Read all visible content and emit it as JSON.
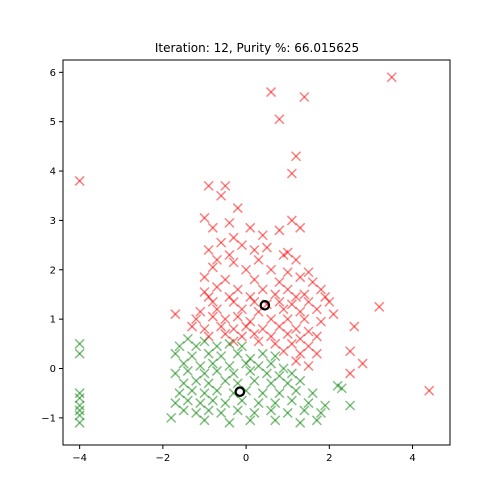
{
  "chart_data": {
    "type": "scatter",
    "title": "Iteration: 12, Purity %: 66.015625",
    "xlabel": "",
    "ylabel": "",
    "xlim": [
      -4.4,
      4.9
    ],
    "ylim": [
      -1.55,
      6.25
    ],
    "xticks": [
      -4,
      -2,
      0,
      2,
      4
    ],
    "yticks": [
      -1,
      0,
      1,
      2,
      3,
      4,
      5,
      6
    ],
    "xtick_labels": [
      "−4",
      "−2",
      "0",
      "2",
      "4"
    ],
    "ytick_labels": [
      "−1",
      "0",
      "1",
      "2",
      "3",
      "4",
      "5",
      "6"
    ],
    "grid": false,
    "legend": "none",
    "colors": {
      "red_cluster": "#ff0000",
      "green_cluster": "#008000",
      "centroid_edge": "#000000"
    },
    "series": [
      {
        "marker": "x",
        "color": "#ff0000",
        "points": [
          [
            3.5,
            5.9
          ],
          [
            0.6,
            5.6
          ],
          [
            1.4,
            5.5
          ],
          [
            0.8,
            5.05
          ],
          [
            -4.0,
            3.8
          ],
          [
            1.2,
            4.3
          ],
          [
            1.1,
            3.95
          ],
          [
            -0.9,
            3.7
          ],
          [
            -0.5,
            3.7
          ],
          [
            -0.6,
            3.5
          ],
          [
            -1.0,
            3.05
          ],
          [
            -0.2,
            3.25
          ],
          [
            1.1,
            3.0
          ],
          [
            1.3,
            2.85
          ],
          [
            -0.4,
            2.95
          ],
          [
            -0.8,
            2.85
          ],
          [
            0.1,
            2.85
          ],
          [
            0.4,
            2.7
          ],
          [
            0.8,
            2.8
          ],
          [
            -0.3,
            2.65
          ],
          [
            -0.6,
            2.55
          ],
          [
            -0.1,
            2.5
          ],
          [
            0.5,
            2.45
          ],
          [
            -0.9,
            2.4
          ],
          [
            0.2,
            2.4
          ],
          [
            1.0,
            2.35
          ],
          [
            -0.4,
            2.3
          ],
          [
            0.9,
            2.3
          ],
          [
            -0.7,
            2.2
          ],
          [
            -0.3,
            2.15
          ],
          [
            0.3,
            2.2
          ],
          [
            1.2,
            2.2
          ],
          [
            -0.8,
            2.05
          ],
          [
            0.0,
            2.0
          ],
          [
            0.6,
            2.0
          ],
          [
            1.0,
            1.95
          ],
          [
            1.5,
            1.95
          ],
          [
            -1.0,
            1.85
          ],
          [
            -0.5,
            1.8
          ],
          [
            0.2,
            1.8
          ],
          [
            0.8,
            1.75
          ],
          [
            1.3,
            1.85
          ],
          [
            1.6,
            1.75
          ],
          [
            -0.7,
            1.65
          ],
          [
            -0.2,
            1.6
          ],
          [
            0.4,
            1.6
          ],
          [
            1.0,
            1.6
          ],
          [
            1.4,
            1.5
          ],
          [
            1.8,
            1.6
          ],
          [
            -1.0,
            1.55
          ],
          [
            -0.9,
            1.45
          ],
          [
            -0.4,
            1.45
          ],
          [
            0.1,
            1.45
          ],
          [
            0.7,
            1.5
          ],
          [
            1.2,
            1.45
          ],
          [
            1.9,
            1.45
          ],
          [
            -0.8,
            1.35
          ],
          [
            -0.3,
            1.35
          ],
          [
            0.2,
            1.35
          ],
          [
            0.5,
            1.3
          ],
          [
            0.8,
            1.35
          ],
          [
            1.1,
            1.3
          ],
          [
            1.5,
            1.35
          ],
          [
            2.0,
            1.35
          ],
          [
            3.2,
            1.25
          ],
          [
            -1.7,
            1.1
          ],
          [
            -1.1,
            1.15
          ],
          [
            -0.7,
            1.2
          ],
          [
            -0.1,
            1.2
          ],
          [
            0.3,
            1.15
          ],
          [
            0.9,
            1.2
          ],
          [
            1.3,
            1.15
          ],
          [
            1.7,
            1.2
          ],
          [
            2.1,
            1.1
          ],
          [
            -1.2,
            1.0
          ],
          [
            -0.8,
            1.05
          ],
          [
            -0.5,
            1.0
          ],
          [
            -0.2,
            1.05
          ],
          [
            0.1,
            0.95
          ],
          [
            0.6,
            1.0
          ],
          [
            1.0,
            1.0
          ],
          [
            1.4,
            1.0
          ],
          [
            1.8,
            0.95
          ],
          [
            -1.3,
            0.85
          ],
          [
            -1.0,
            0.8
          ],
          [
            -0.6,
            0.85
          ],
          [
            -0.3,
            0.8
          ],
          [
            0.0,
            0.85
          ],
          [
            0.4,
            0.8
          ],
          [
            0.8,
            0.85
          ],
          [
            1.2,
            0.8
          ],
          [
            1.5,
            0.75
          ],
          [
            2.6,
            0.85
          ],
          [
            -0.9,
            0.65
          ],
          [
            -0.5,
            0.7
          ],
          [
            -0.1,
            0.65
          ],
          [
            0.2,
            0.7
          ],
          [
            0.6,
            0.65
          ],
          [
            1.0,
            0.7
          ],
          [
            1.3,
            0.6
          ],
          [
            1.7,
            0.65
          ],
          [
            -0.3,
            0.55
          ],
          [
            0.3,
            0.55
          ],
          [
            0.7,
            0.5
          ],
          [
            1.1,
            0.5
          ],
          [
            1.5,
            0.45
          ],
          [
            0.9,
            0.35
          ],
          [
            1.3,
            0.3
          ],
          [
            1.7,
            0.3
          ],
          [
            2.5,
            0.35
          ],
          [
            1.2,
            0.15
          ],
          [
            2.8,
            0.1
          ],
          [
            1.5,
            0.05
          ],
          [
            2.5,
            -0.1
          ],
          [
            4.4,
            -0.45
          ]
        ]
      },
      {
        "marker": "x",
        "color": "#008000",
        "points": [
          [
            -4.0,
            0.5
          ],
          [
            -4.0,
            0.3
          ],
          [
            -4.0,
            -0.5
          ],
          [
            -4.0,
            -0.6
          ],
          [
            -4.0,
            -0.75
          ],
          [
            -4.0,
            -0.85
          ],
          [
            -4.0,
            -0.95
          ],
          [
            -4.0,
            -1.1
          ],
          [
            -1.6,
            0.45
          ],
          [
            -1.4,
            0.6
          ],
          [
            -1.2,
            0.45
          ],
          [
            -1.0,
            0.55
          ],
          [
            -0.7,
            0.45
          ],
          [
            -0.4,
            0.5
          ],
          [
            -0.1,
            0.45
          ],
          [
            -1.7,
            0.3
          ],
          [
            -1.3,
            0.25
          ],
          [
            -0.9,
            0.3
          ],
          [
            -0.6,
            0.25
          ],
          [
            -0.2,
            0.3
          ],
          [
            0.1,
            0.2
          ],
          [
            0.4,
            0.3
          ],
          [
            0.7,
            0.25
          ],
          [
            -1.5,
            0.1
          ],
          [
            -1.1,
            0.05
          ],
          [
            -0.8,
            0.1
          ],
          [
            -0.4,
            0.05
          ],
          [
            0.0,
            0.1
          ],
          [
            0.3,
            0.05
          ],
          [
            0.6,
            0.1
          ],
          [
            0.9,
            0.0
          ],
          [
            -1.7,
            -0.1
          ],
          [
            -1.4,
            -0.05
          ],
          [
            -1.0,
            -0.1
          ],
          [
            -0.7,
            -0.05
          ],
          [
            -0.3,
            -0.1
          ],
          [
            0.1,
            -0.05
          ],
          [
            0.5,
            -0.1
          ],
          [
            0.8,
            -0.15
          ],
          [
            1.1,
            -0.1
          ],
          [
            -1.5,
            -0.3
          ],
          [
            -1.2,
            -0.25
          ],
          [
            -0.9,
            -0.3
          ],
          [
            -0.5,
            -0.25
          ],
          [
            -0.2,
            -0.3
          ],
          [
            0.2,
            -0.25
          ],
          [
            0.6,
            -0.3
          ],
          [
            1.0,
            -0.3
          ],
          [
            1.3,
            -0.25
          ],
          [
            2.2,
            -0.35
          ],
          [
            -1.6,
            -0.5
          ],
          [
            -1.3,
            -0.45
          ],
          [
            -1.0,
            -0.5
          ],
          [
            -0.7,
            -0.45
          ],
          [
            -0.3,
            -0.5
          ],
          [
            0.0,
            -0.45
          ],
          [
            0.4,
            -0.5
          ],
          [
            0.8,
            -0.5
          ],
          [
            1.2,
            -0.45
          ],
          [
            1.6,
            -0.5
          ],
          [
            2.3,
            -0.4
          ],
          [
            -1.7,
            -0.7
          ],
          [
            -1.4,
            -0.65
          ],
          [
            -1.1,
            -0.7
          ],
          [
            -0.8,
            -0.65
          ],
          [
            -0.5,
            -0.7
          ],
          [
            -0.1,
            -0.65
          ],
          [
            0.3,
            -0.7
          ],
          [
            0.7,
            -0.7
          ],
          [
            1.1,
            -0.65
          ],
          [
            1.5,
            -0.7
          ],
          [
            1.9,
            -0.75
          ],
          [
            -1.5,
            -0.85
          ],
          [
            -1.2,
            -0.9
          ],
          [
            -0.9,
            -0.85
          ],
          [
            -0.6,
            -0.9
          ],
          [
            -0.2,
            -0.85
          ],
          [
            0.2,
            -0.9
          ],
          [
            0.6,
            -0.85
          ],
          [
            1.0,
            -0.9
          ],
          [
            1.4,
            -0.85
          ],
          [
            1.8,
            -0.9
          ],
          [
            2.5,
            -0.75
          ],
          [
            -1.8,
            -1.0
          ],
          [
            -1.0,
            -1.05
          ],
          [
            -0.4,
            -1.1
          ],
          [
            0.1,
            -1.05
          ],
          [
            0.7,
            -1.05
          ],
          [
            1.3,
            -1.1
          ],
          [
            1.7,
            -1.05
          ]
        ]
      }
    ],
    "centroids": [
      {
        "x": 0.45,
        "y": 1.28
      },
      {
        "x": -0.15,
        "y": -0.47
      }
    ]
  }
}
